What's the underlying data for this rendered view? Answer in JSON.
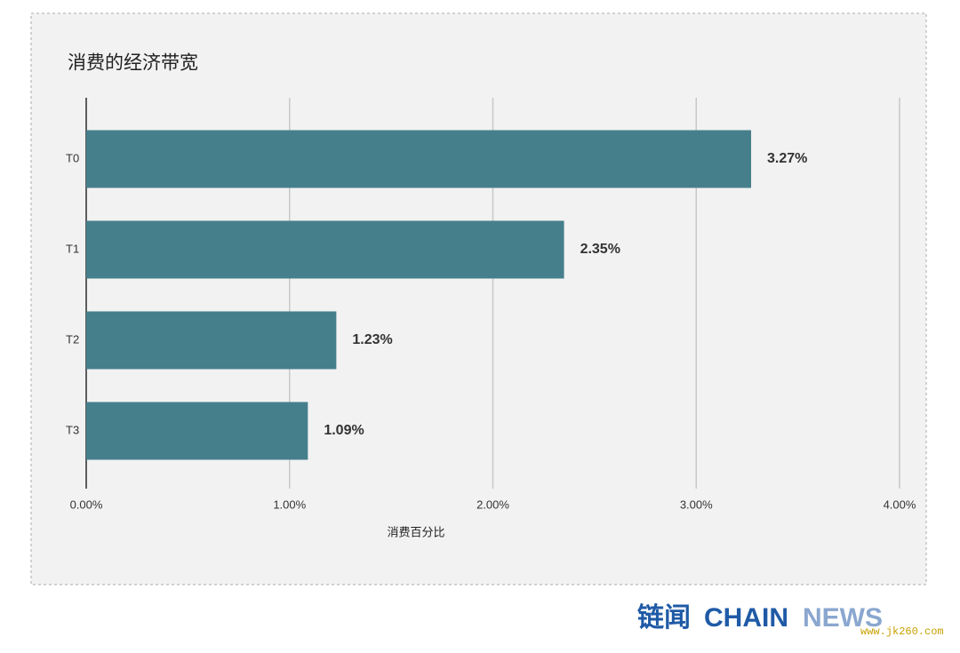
{
  "chart_data": {
    "type": "bar",
    "orientation": "horizontal",
    "title": "消费的经济带宽",
    "categories": [
      "T0",
      "T1",
      "T2",
      "T3"
    ],
    "values": [
      3.27,
      2.35,
      1.23,
      1.09
    ],
    "value_labels": [
      "3.27%",
      "2.35%",
      "1.23%",
      "1.09%"
    ],
    "color": "#467f8c",
    "xlabel": "消费百分比",
    "xlim": [
      0,
      4
    ],
    "xticks": [
      {
        "value": 0,
        "label": "0.00%"
      },
      {
        "value": 1,
        "label": "1.00%"
      },
      {
        "value": 2,
        "label": "2.00%"
      },
      {
        "value": 3,
        "label": "3.00%"
      },
      {
        "value": 4,
        "label": "4.00%"
      }
    ],
    "grid": true
  },
  "logo": {
    "cn": "链闻",
    "en_dark": "CHAIN",
    "en_light": "NEWS"
  },
  "site": "www.jk260.com"
}
